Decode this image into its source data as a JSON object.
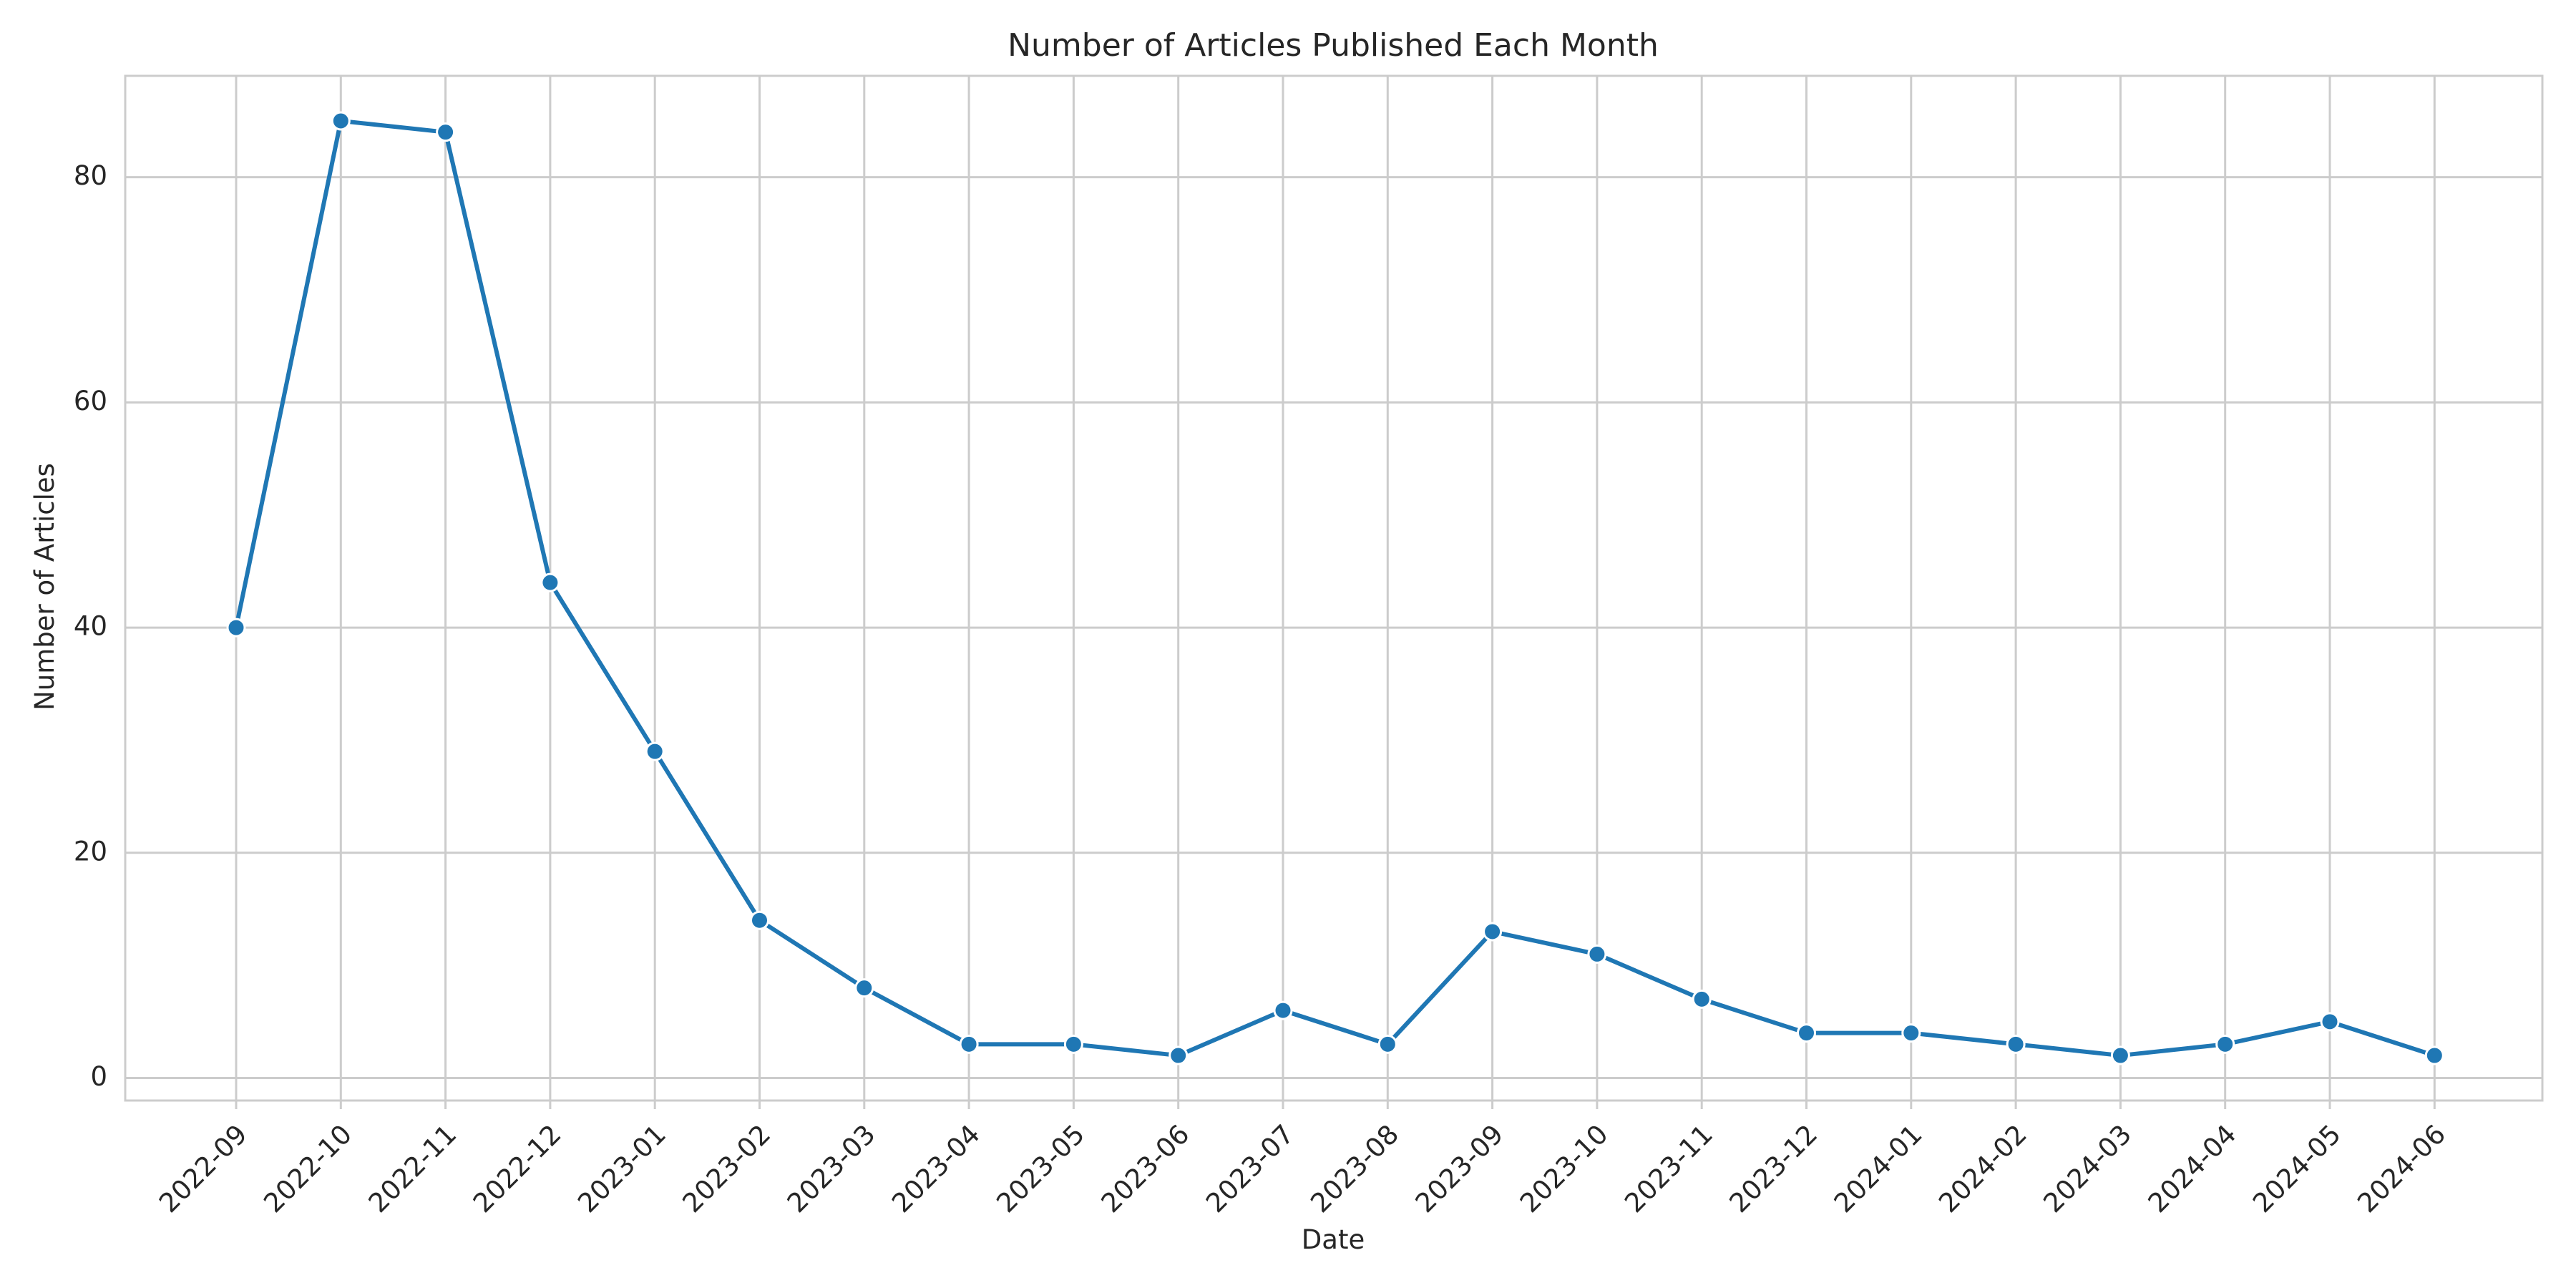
{
  "chart_data": {
    "type": "line",
    "title": "Number of Articles Published Each Month",
    "xlabel": "Date",
    "ylabel": "Number of Articles",
    "categories": [
      "2022-09",
      "2022-10",
      "2022-11",
      "2022-12",
      "2023-01",
      "2023-02",
      "2023-03",
      "2023-04",
      "2023-05",
      "2023-06",
      "2023-07",
      "2023-08",
      "2023-09",
      "2023-10",
      "2023-11",
      "2023-12",
      "2024-01",
      "2024-02",
      "2024-03",
      "2024-04",
      "2024-05",
      "2024-06"
    ],
    "values": [
      40,
      85,
      84,
      44,
      29,
      14,
      8,
      3,
      3,
      2,
      6,
      3,
      13,
      11,
      7,
      4,
      4,
      3,
      2,
      3,
      5,
      2
    ],
    "ylim": [
      -2,
      89
    ],
    "yticks": [
      0,
      20,
      40,
      60,
      80
    ],
    "grid": true,
    "markers": true,
    "line_color": "#1f77b4",
    "x_tick_rotation": 45
  }
}
